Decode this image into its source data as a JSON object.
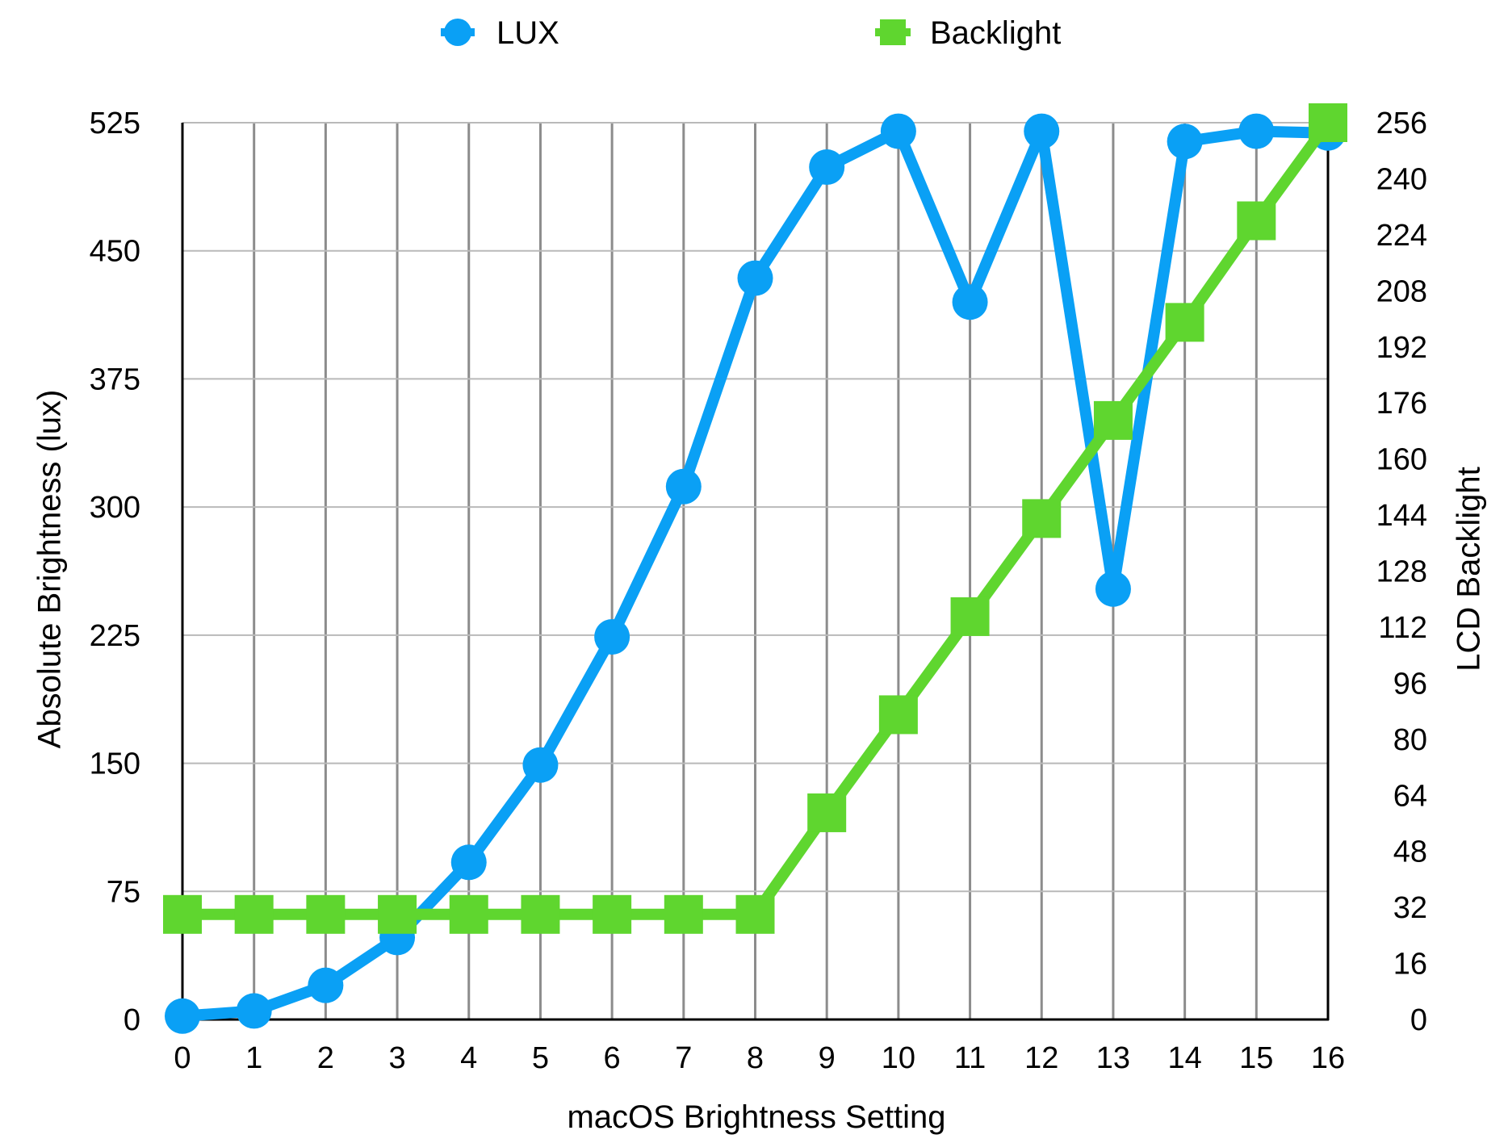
{
  "chart_data": {
    "type": "line",
    "title": "",
    "xlabel": "macOS Brightness Setting",
    "ylabel": "Absolute Brightness (lux)",
    "y2label": "LCD Backlight",
    "x": [
      0,
      1,
      2,
      3,
      4,
      5,
      6,
      7,
      8,
      9,
      10,
      11,
      12,
      13,
      14,
      15,
      16
    ],
    "xlim": [
      0,
      16
    ],
    "xticks": [
      "0",
      "1",
      "2",
      "3",
      "4",
      "5",
      "6",
      "7",
      "8",
      "9",
      "10",
      "11",
      "12",
      "13",
      "14",
      "15",
      "16"
    ],
    "ylim": [
      0,
      525
    ],
    "yticks": [
      "0",
      "75",
      "150",
      "225",
      "300",
      "375",
      "450",
      "525"
    ],
    "y2lim": [
      0,
      256
    ],
    "y2ticks": [
      "0",
      "16",
      "32",
      "48",
      "64",
      "80",
      "96",
      "112",
      "128",
      "144",
      "160",
      "176",
      "192",
      "208",
      "224",
      "240",
      "256"
    ],
    "grid": true,
    "legend": "top-center",
    "series": [
      {
        "name": "LUX",
        "axis": "left",
        "marker": "circle",
        "color": "#0aa0f5",
        "values": [
          2,
          5,
          20,
          48,
          92,
          149,
          224,
          312,
          434,
          499,
          520,
          420,
          520,
          252,
          514,
          520,
          519
        ]
      },
      {
        "name": "Backlight",
        "axis": "right",
        "marker": "square",
        "color": "#5fd62f",
        "values": [
          30,
          30,
          30,
          30,
          30,
          30,
          30,
          30,
          30,
          59,
          87,
          115,
          143,
          171,
          199,
          228,
          256
        ]
      }
    ]
  }
}
